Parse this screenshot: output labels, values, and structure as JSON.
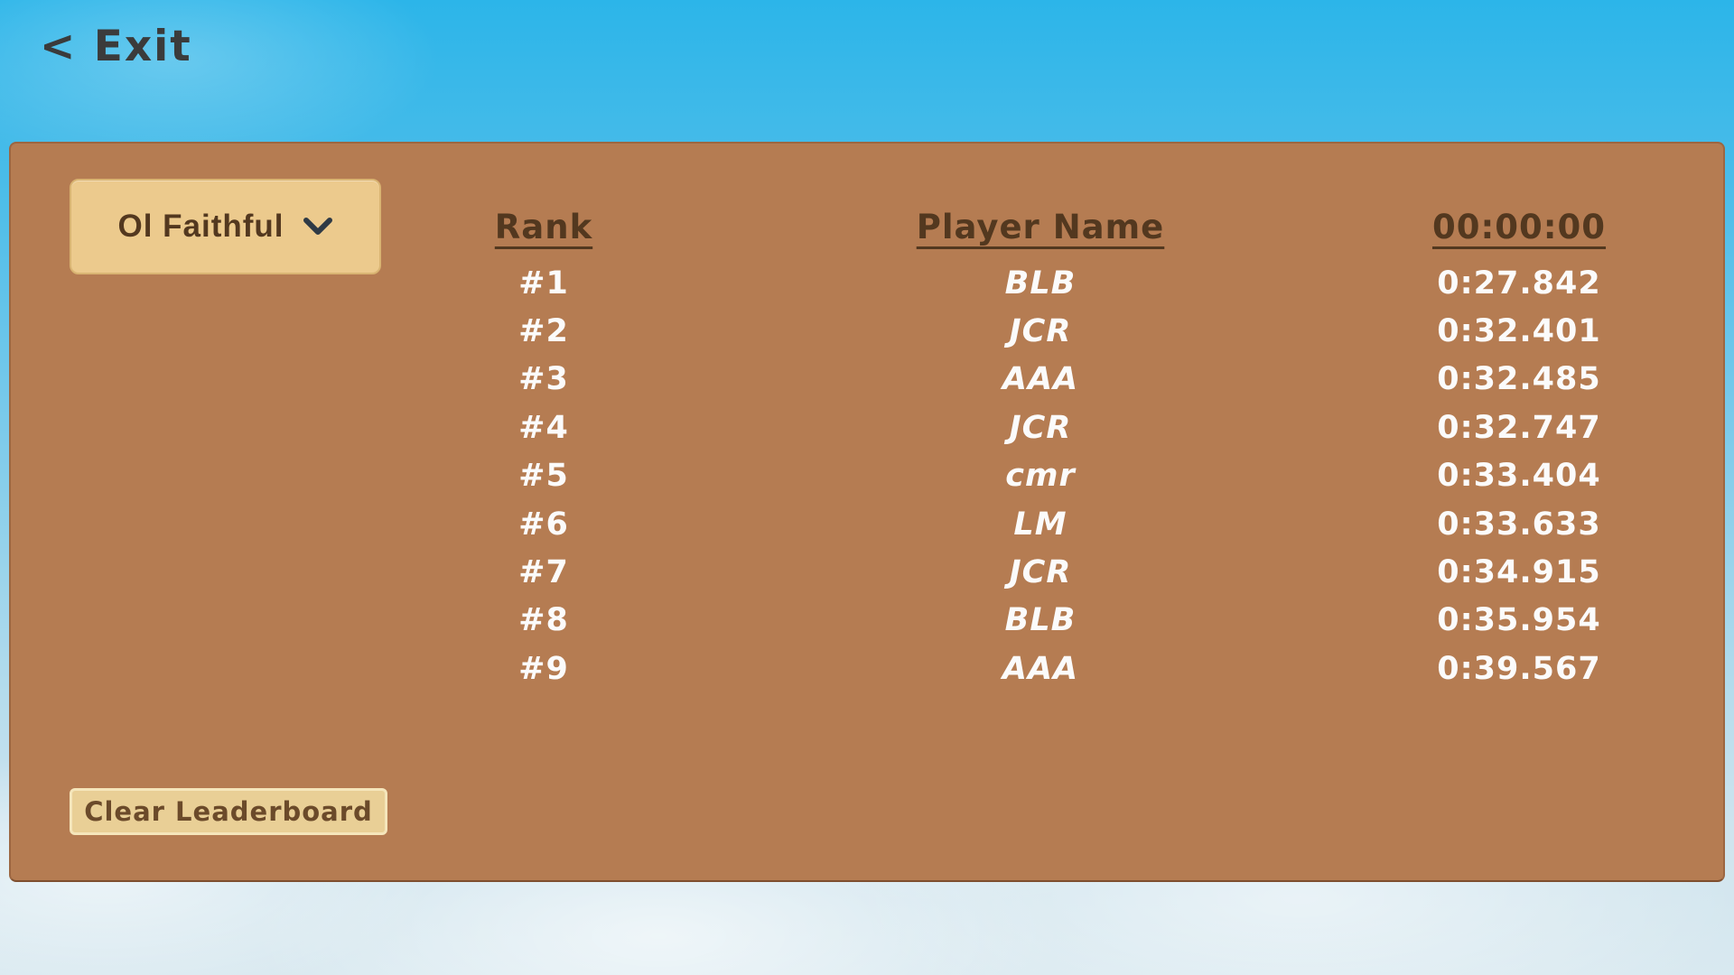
{
  "exit_label": "< Exit",
  "panel": {
    "level_selector": {
      "label": "Ol Faithful"
    },
    "headers": {
      "rank": "Rank",
      "player": "Player Name",
      "time": "00:00:00"
    },
    "rows": [
      {
        "rank": "#1",
        "player": "BLB",
        "time": "0:27.842"
      },
      {
        "rank": "#2",
        "player": "JCR",
        "time": "0:32.401"
      },
      {
        "rank": "#3",
        "player": "AAA",
        "time": "0:32.485"
      },
      {
        "rank": "#4",
        "player": "JCR",
        "time": "0:32.747"
      },
      {
        "rank": "#5",
        "player": "cmr",
        "time": "0:33.404"
      },
      {
        "rank": "#6",
        "player": "LM",
        "time": "0:33.633"
      },
      {
        "rank": "#7",
        "player": "JCR",
        "time": "0:34.915"
      },
      {
        "rank": "#8",
        "player": "BLB",
        "time": "0:35.954"
      },
      {
        "rank": "#9",
        "player": "AAA",
        "time": "0:39.567"
      }
    ],
    "clear_button_label": "Clear Leaderboard"
  },
  "icons": {
    "dropdown": "chevron-down-icon"
  },
  "colors": {
    "sky_top": "#2cb5e9",
    "sky_bottom": "#d9e9f0",
    "panel_brown": "#b57c52",
    "button_tan": "#ecca8d",
    "text_dark_brown": "#53381f",
    "text_white": "#fbfbfb",
    "exit_charcoal": "#3b3b3b"
  }
}
